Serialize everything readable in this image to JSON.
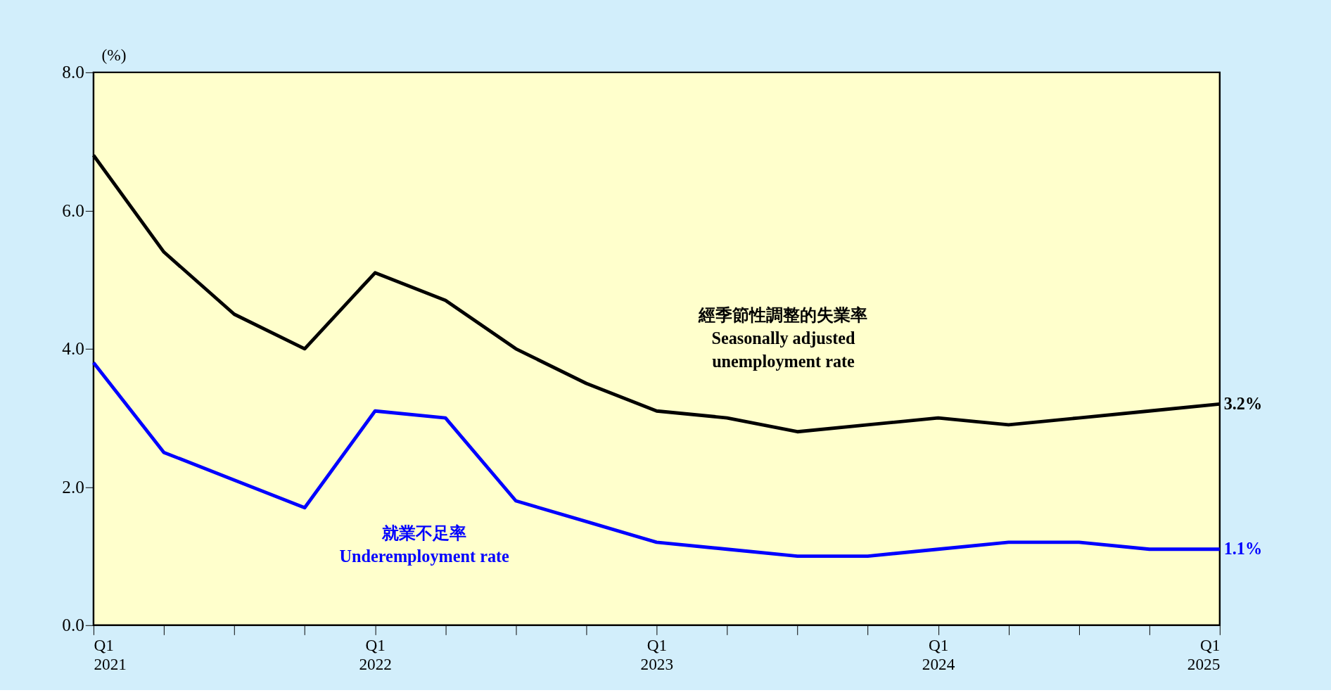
{
  "chart_data": {
    "type": "line",
    "ylabel": "(%)",
    "categories": [
      "Q1\n2021",
      null,
      null,
      null,
      "Q1\n2022",
      null,
      null,
      null,
      "Q1\n2023",
      null,
      null,
      null,
      "Q1\n2024",
      null,
      null,
      null,
      "Q1\n2025"
    ],
    "series": [
      {
        "name": "經季節性調整的失業率\nSeasonally adjusted\nunemployment rate",
        "color": "#000000",
        "values": [
          6.8,
          5.4,
          4.5,
          4.0,
          5.1,
          4.7,
          4.0,
          3.5,
          3.1,
          3.0,
          2.8,
          2.9,
          3.0,
          2.9,
          3.0,
          3.1,
          3.2
        ],
        "value_labels": [
          null,
          null,
          null,
          null,
          null,
          null,
          null,
          null,
          null,
          null,
          null,
          null,
          null,
          null,
          null,
          null,
          "3.2%"
        ]
      },
      {
        "name": "就業不足率\nUnderemployment rate",
        "color": "#0000ff",
        "values": [
          3.8,
          2.5,
          2.1,
          1.7,
          3.1,
          3.0,
          1.8,
          1.5,
          1.2,
          1.1,
          1.0,
          1.0,
          1.1,
          1.2,
          1.2,
          1.1,
          1.1
        ],
        "value_labels": [
          null,
          null,
          null,
          null,
          null,
          null,
          null,
          null,
          null,
          null,
          null,
          null,
          null,
          null,
          null,
          null,
          "1.1%"
        ]
      }
    ],
    "ylim": [
      0,
      8
    ],
    "yticks": [
      {
        "value": 0,
        "label": "0.0"
      },
      {
        "value": 2,
        "label": "2.0"
      },
      {
        "value": 4,
        "label": "4.0"
      },
      {
        "value": 6,
        "label": "6.0"
      },
      {
        "value": 8,
        "label": "8.0"
      }
    ],
    "grid": false,
    "marker": "none",
    "line_style": "solid"
  }
}
